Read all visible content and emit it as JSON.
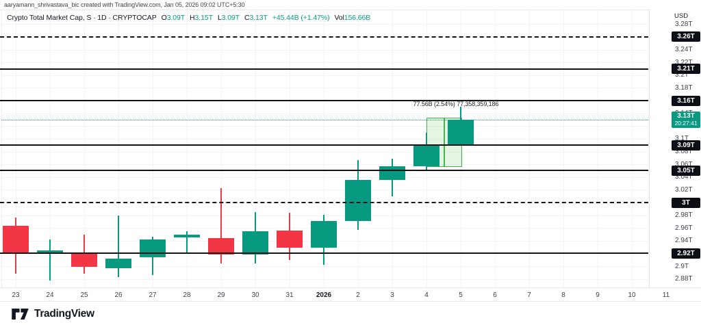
{
  "attribution": "aaryamann_shrivastava_bic created with TradingView.com, Jan 05, 2026 09:02 UTC+5:30",
  "header": {
    "symbol_title": "Crypto Total Market Cap, S · 1D · CRYPTOCAP",
    "ohlc": [
      {
        "label": "O",
        "value": "3.09T"
      },
      {
        "label": "H",
        "value": "3.15T"
      },
      {
        "label": "L",
        "value": "3.09T"
      },
      {
        "label": "C",
        "value": "3.13T"
      }
    ],
    "change": "+45.44B (+1.47%)",
    "volume_label": "Vol",
    "volume_value": "156.66B"
  },
  "price_axis": {
    "unit": "USD",
    "ticks": [
      {
        "value": 3.28,
        "label": "3.28T"
      },
      {
        "value": 3.24,
        "label": "3.24T"
      },
      {
        "value": 3.22,
        "label": "3.22T"
      },
      {
        "value": 3.2,
        "label": "3.2T"
      },
      {
        "value": 3.18,
        "label": "3.18T"
      },
      {
        "value": 3.14,
        "label": "3.14T"
      },
      {
        "value": 3.12,
        "label": "3.12T"
      },
      {
        "value": 3.1,
        "label": "3.1T"
      },
      {
        "value": 3.08,
        "label": "3.08T"
      },
      {
        "value": 3.06,
        "label": "3.06T"
      },
      {
        "value": 3.04,
        "label": "3.04T"
      },
      {
        "value": 3.02,
        "label": "3.02T"
      },
      {
        "value": 2.98,
        "label": "2.98T"
      },
      {
        "value": 2.96,
        "label": "2.96T"
      },
      {
        "value": 2.94,
        "label": "2.94T"
      },
      {
        "value": 2.9,
        "label": "2.9T"
      },
      {
        "value": 2.88,
        "label": "2.88T"
      }
    ]
  },
  "time_axis": {
    "labels": [
      "23",
      "24",
      "25",
      "26",
      "27",
      "28",
      "29",
      "30",
      "31",
      "2026",
      "2",
      "3",
      "4",
      "5",
      "6",
      "7",
      "8",
      "9",
      "10",
      "11"
    ],
    "bold_label": "2026"
  },
  "chart_data": {
    "type": "candlestick",
    "title": "Crypto Total Market Cap",
    "symbol": "CRYPTOCAP",
    "timeframe": "1D",
    "ylim": [
      2.87,
      3.295
    ],
    "x_categories": [
      "Dec 23",
      "Dec 24",
      "Dec 25",
      "Dec 26",
      "Dec 27",
      "Dec 28",
      "Dec 29",
      "Dec 30",
      "Dec 31",
      "Jan 1 2026",
      "Jan 2",
      "Jan 3",
      "Jan 4",
      "Jan 5"
    ],
    "candles": [
      {
        "o": 2.963,
        "h": 2.976,
        "l": 2.888,
        "c": 2.921
      },
      {
        "o": 2.922,
        "h": 2.942,
        "l": 2.878,
        "c": 2.925
      },
      {
        "o": 2.921,
        "h": 2.95,
        "l": 2.888,
        "c": 2.899
      },
      {
        "o": 2.897,
        "h": 2.98,
        "l": 2.883,
        "c": 2.912
      },
      {
        "o": 2.914,
        "h": 2.946,
        "l": 2.886,
        "c": 2.942
      },
      {
        "o": 2.945,
        "h": 2.955,
        "l": 2.921,
        "c": 2.95
      },
      {
        "o": 2.944,
        "h": 3.023,
        "l": 2.904,
        "c": 2.918
      },
      {
        "o": 2.918,
        "h": 2.985,
        "l": 2.904,
        "c": 2.955
      },
      {
        "o": 2.956,
        "h": 2.984,
        "l": 2.91,
        "c": 2.929
      },
      {
        "o": 2.929,
        "h": 2.981,
        "l": 2.902,
        "c": 2.971
      },
      {
        "o": 2.971,
        "h": 3.067,
        "l": 2.957,
        "c": 3.035
      },
      {
        "o": 3.035,
        "h": 3.069,
        "l": 3.01,
        "c": 3.057
      },
      {
        "o": 3.057,
        "h": 3.11,
        "l": 3.05,
        "c": 3.089
      },
      {
        "o": 3.09,
        "h": 3.15,
        "l": 3.09,
        "c": 3.13
      }
    ],
    "levels": [
      {
        "value": 3.26,
        "label": "3.26T",
        "style": "dashed"
      },
      {
        "value": 3.21,
        "label": "3.21T",
        "style": "solid"
      },
      {
        "value": 3.16,
        "label": "3.16T",
        "style": "solid"
      },
      {
        "value": 3.09,
        "label": "3.09T",
        "style": "solid"
      },
      {
        "value": 3.05,
        "label": "3.05T",
        "style": "solid"
      },
      {
        "value": 3.0,
        "label": "3T",
        "style": "dashed"
      },
      {
        "value": 2.92,
        "label": "2.92T",
        "style": "solid"
      }
    ],
    "last_price": {
      "value": 3.13,
      "label": "3.13T",
      "countdown": "20:27:41"
    },
    "measurement": {
      "from_index": 12,
      "to_index": 13,
      "price_top": 3.1331,
      "price_bottom": 3.0555,
      "label": "77.56B (2.54%) 77,358,359,186"
    },
    "colors": {
      "up": "#089981",
      "down": "#f23645",
      "level_line": "#131313",
      "grid": "#f0f3fa",
      "measure_fill": "rgba(103,195,96,0.17)",
      "measure_line": "#4caf50",
      "last_price_line": "#089981"
    },
    "legend_position": "top-left",
    "grid": true
  },
  "footer": {
    "brand": "TradingView"
  }
}
